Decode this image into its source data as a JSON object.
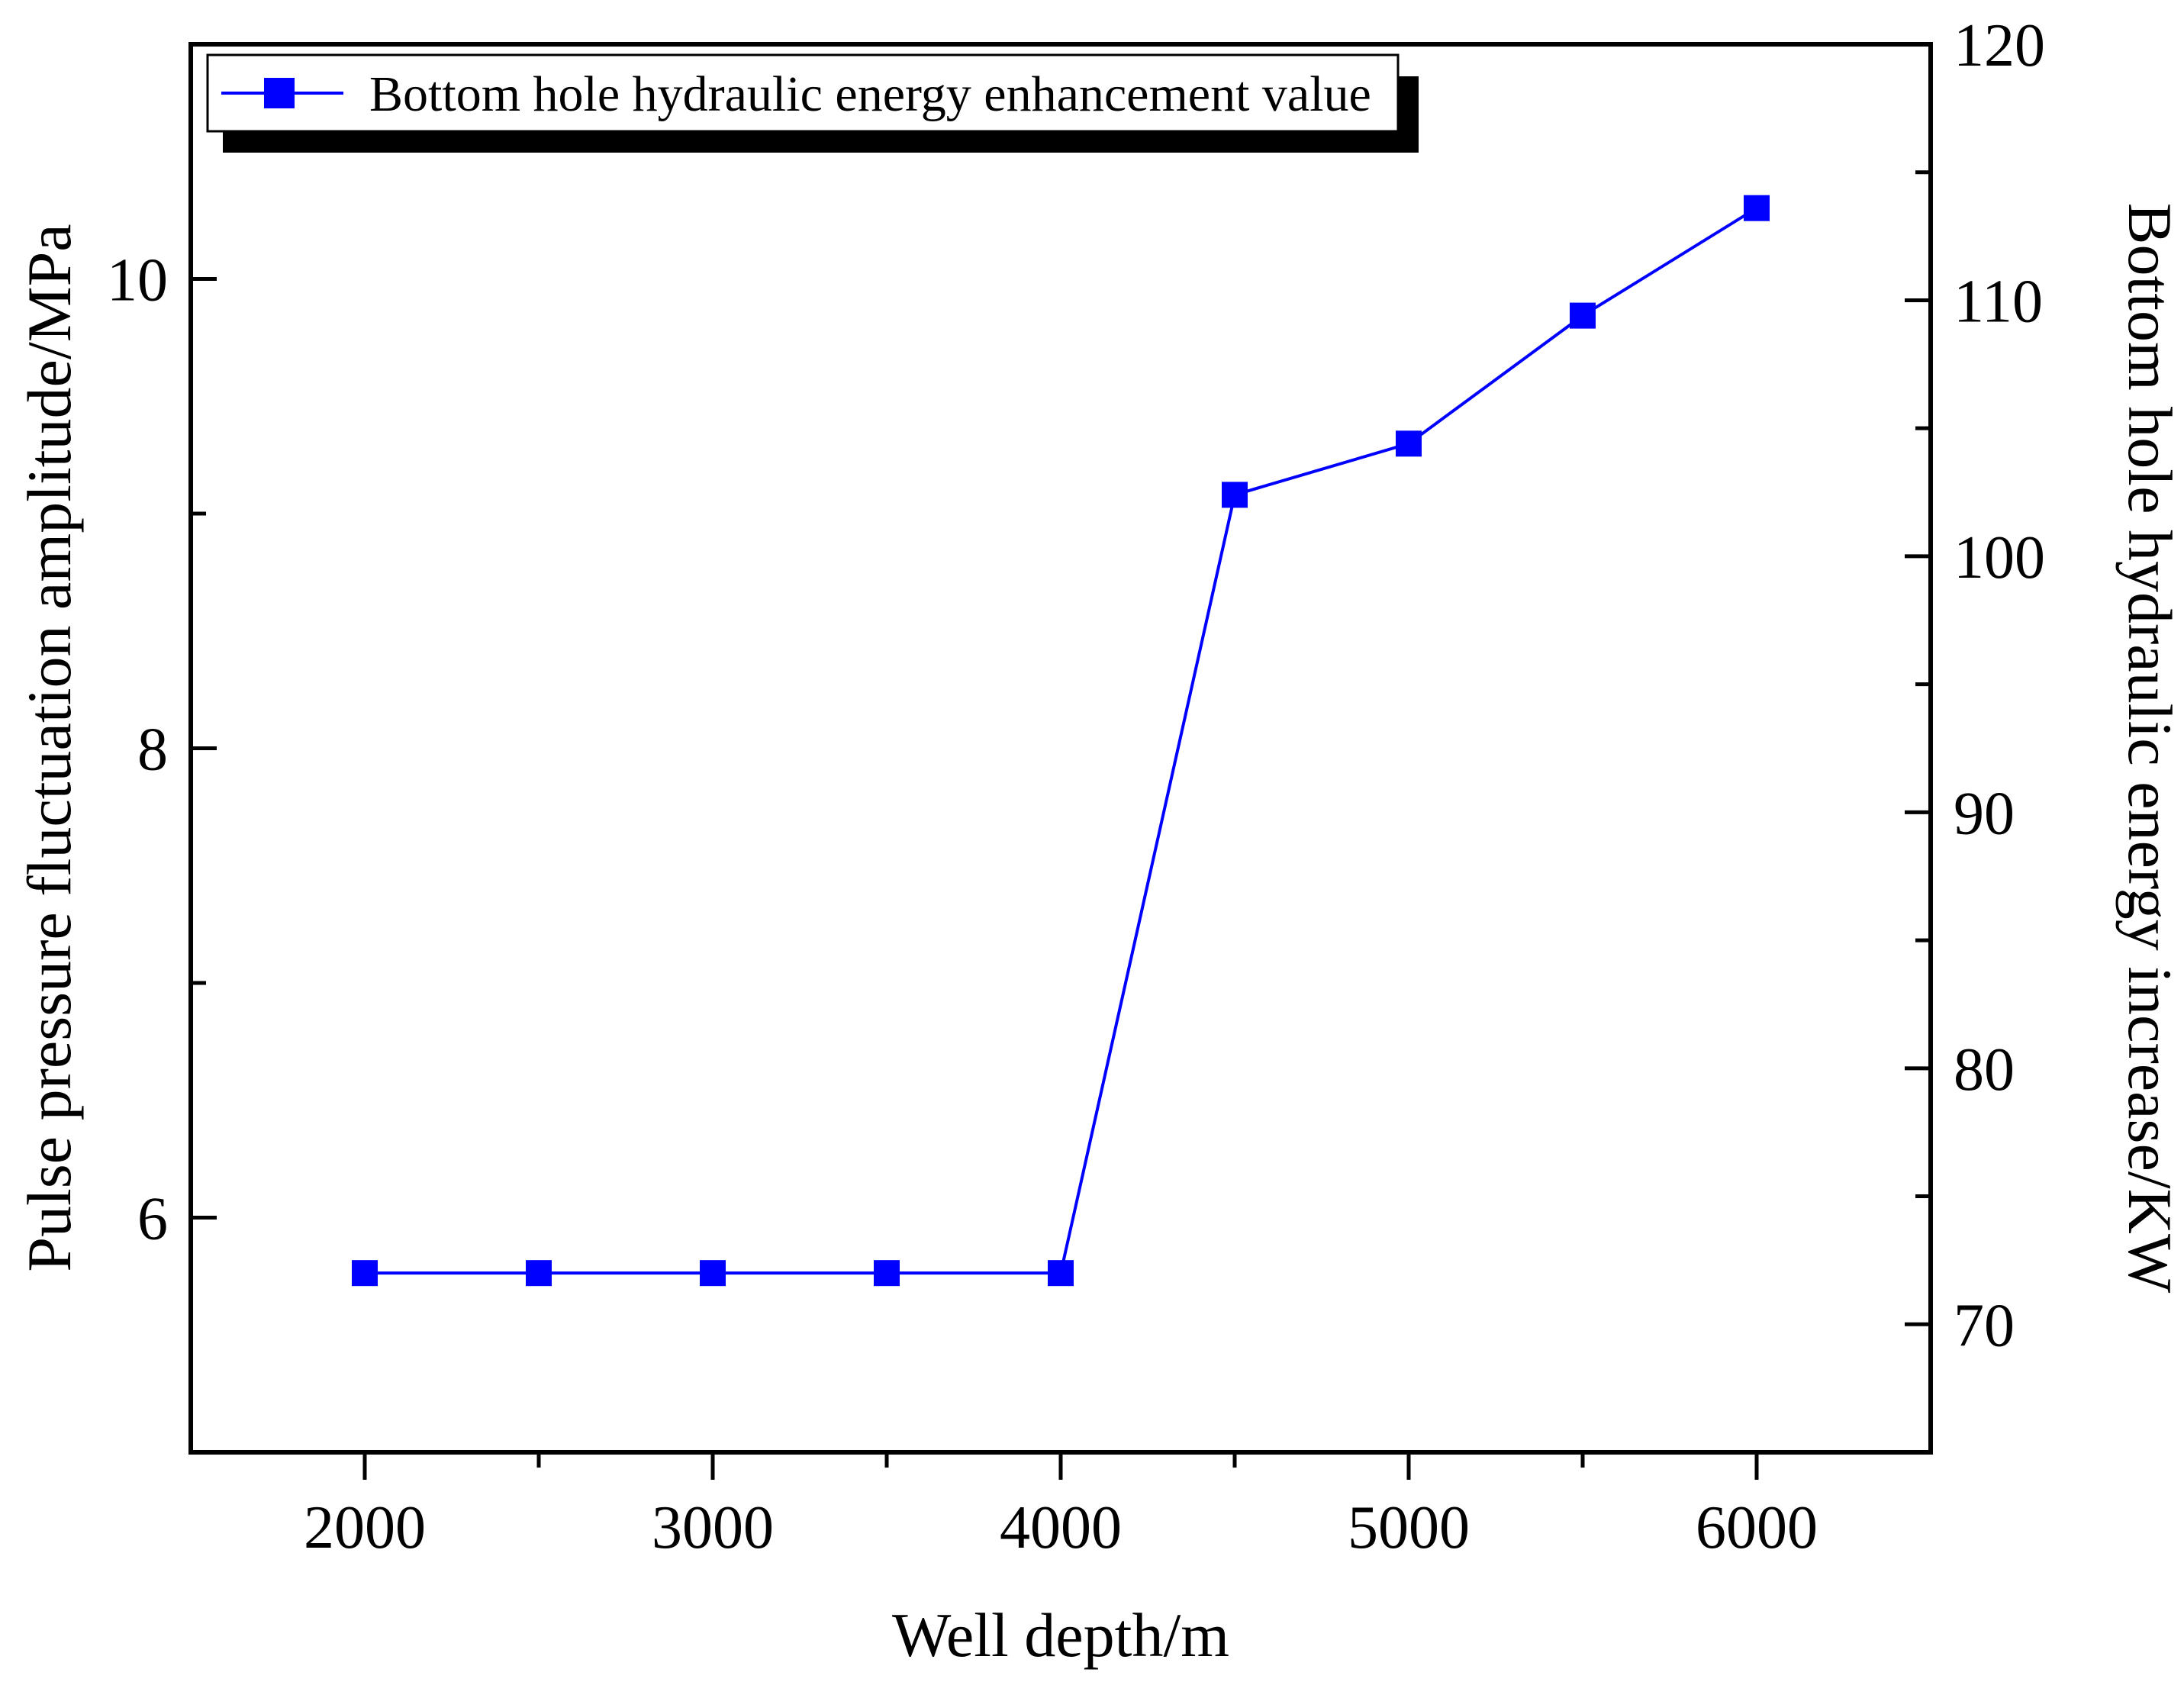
{
  "chart_data": {
    "type": "line",
    "xlabel": "Well depth/m",
    "ylabel_left": "Pulse pressure fluctuation amplitude/MPa",
    "ylabel_right": "Bottom hole hydraulic energy increase/KW",
    "xlim": [
      1500,
      6500
    ],
    "ylim_left": [
      5.0,
      11.0
    ],
    "ylim_right": [
      65,
      120
    ],
    "x_ticks": [
      2000,
      3000,
      4000,
      5000,
      6000
    ],
    "y_left_ticks": [
      6,
      8,
      10
    ],
    "y_right_ticks": [
      70,
      80,
      90,
      100,
      110,
      120
    ],
    "legend_position": "top-left",
    "grid": false,
    "series": [
      {
        "name": "Bottom hole hydraulic energy enhancement value",
        "axis": "right",
        "color": "#0000ff",
        "marker": "square",
        "x": [
          2000,
          2500,
          3000,
          3500,
          4000,
          4500,
          5000,
          5500,
          6000
        ],
        "y": [
          72.0,
          72.0,
          72.0,
          72.0,
          72.0,
          102.4,
          104.4,
          109.4,
          113.6
        ]
      }
    ]
  }
}
